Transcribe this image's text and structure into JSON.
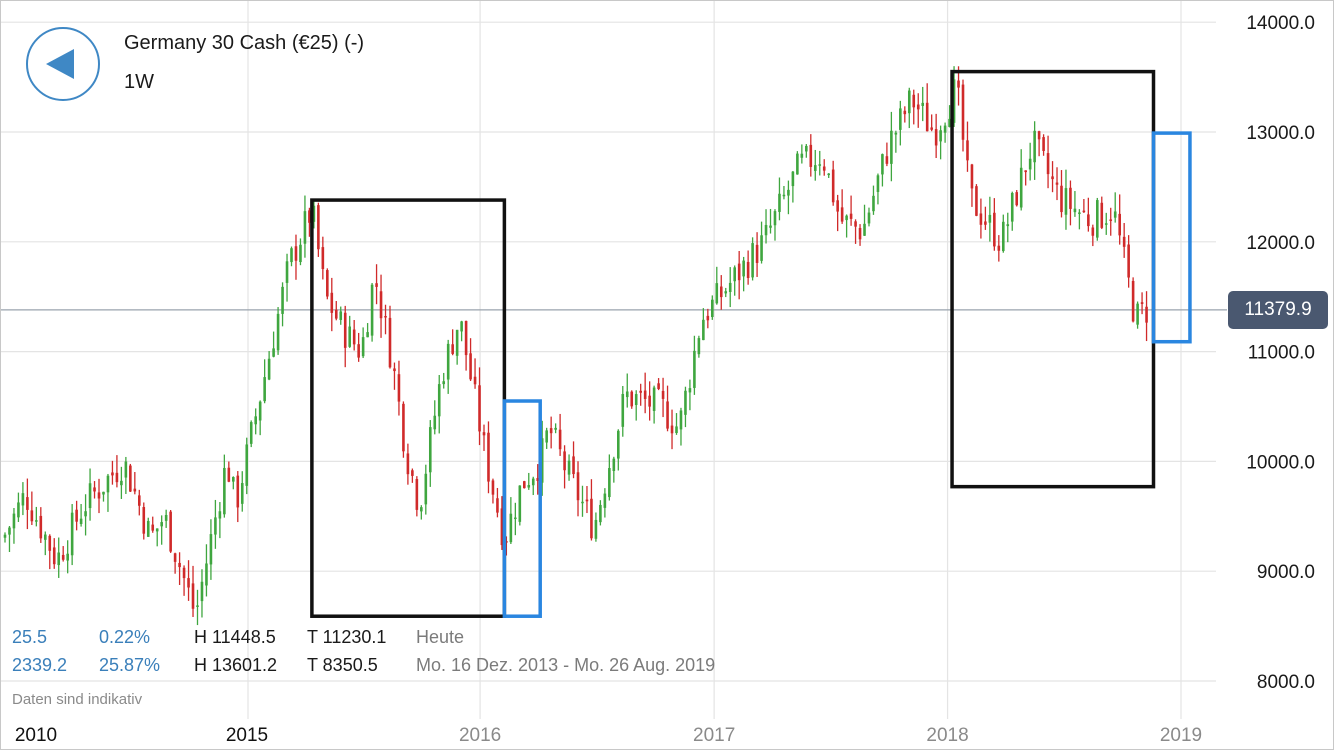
{
  "header": {
    "back_icon": "triangle-left-icon",
    "title": "Germany 30 Cash (€25) (-)",
    "interval": "1W"
  },
  "stats": {
    "row1": {
      "change": "25.5",
      "change_pct": "0.22%",
      "high": "H 11448.5",
      "low": "T 11230.1",
      "period": "Heute"
    },
    "row2": {
      "change": "2339.2",
      "change_pct": "25.87%",
      "high": "H 13601.2",
      "low": "T 8350.5",
      "period": "Mo. 16 Dez. 2013 - Mo. 26 Aug. 2019"
    }
  },
  "footer_note": "Daten sind indikativ",
  "current_price_label": "11379.9",
  "colors": {
    "up": "#3fa63f",
    "down": "#d02a2a",
    "grid": "#e4e4e4",
    "accent": "#3f88c5",
    "box_black": "#111111",
    "box_blue": "#2a86e0",
    "price_tag": "#4a5870"
  },
  "chart_data": {
    "type": "candlestick",
    "interval": "1W",
    "current_price": 11379.9,
    "y_axis": {
      "ticks": [
        14000,
        13000,
        12000,
        11000,
        10000,
        9000,
        8000
      ],
      "tick_labels": [
        "14000.0",
        "13000.0",
        "12000.0",
        "11000.0",
        "10000.0",
        "9000.0",
        "8000.0"
      ],
      "ylim": [
        7850,
        14200
      ],
      "side": "right"
    },
    "x_axis": {
      "tick_labels": [
        "2010",
        "2015",
        "2016",
        "2017",
        "2018",
        "2019"
      ],
      "tick_dates": [
        "2010-01-01",
        "2015-01-01",
        "2016-01-01",
        "2017-01-01",
        "2018-01-01",
        "2019-01-01"
      ],
      "range_start": "2013-12-16",
      "range_end": "2019-01-15"
    },
    "grid": true,
    "price_path": [
      [
        "2013-12-16",
        9300
      ],
      [
        "2014-01-20",
        9700
      ],
      [
        "2014-03-10",
        9100
      ],
      [
        "2014-04-21",
        9600
      ],
      [
        "2014-06-23",
        10000
      ],
      [
        "2014-08-04",
        9300
      ],
      [
        "2014-08-25",
        9500
      ],
      [
        "2014-10-13",
        8600
      ],
      [
        "2014-12-01",
        10000
      ],
      [
        "2014-12-15",
        9600
      ],
      [
        "2015-01-26",
        10700
      ],
      [
        "2015-03-09",
        11800
      ],
      [
        "2015-04-13",
        12300
      ],
      [
        "2015-05-04",
        11500
      ],
      [
        "2015-06-01",
        11200
      ],
      [
        "2015-06-29",
        11000
      ],
      [
        "2015-07-20",
        11700
      ],
      [
        "2015-08-17",
        10900
      ],
      [
        "2015-09-07",
        10100
      ],
      [
        "2015-09-28",
        9600
      ],
      [
        "2015-11-02",
        10800
      ],
      [
        "2015-11-30",
        11300
      ],
      [
        "2016-01-11",
        10000
      ],
      [
        "2016-02-08",
        9300
      ],
      [
        "2016-03-07",
        9800
      ],
      [
        "2016-04-04",
        10000
      ],
      [
        "2016-04-18",
        10300
      ],
      [
        "2016-05-16",
        9900
      ],
      [
        "2016-06-27",
        9400
      ],
      [
        "2016-08-15",
        10600
      ],
      [
        "2016-10-10",
        10500
      ],
      [
        "2016-11-07",
        10300
      ],
      [
        "2016-12-12",
        11300
      ],
      [
        "2017-02-06",
        11700
      ],
      [
        "2017-03-20",
        12000
      ],
      [
        "2017-05-15",
        12700
      ],
      [
        "2017-06-19",
        12800
      ],
      [
        "2017-07-17",
        12200
      ],
      [
        "2017-08-21",
        12100
      ],
      [
        "2017-10-02",
        12900
      ],
      [
        "2017-11-06",
        13300
      ],
      [
        "2017-12-11",
        13000
      ],
      [
        "2018-01-15",
        13400
      ],
      [
        "2018-02-05",
        12400
      ],
      [
        "2018-03-26",
        12000
      ],
      [
        "2018-05-14",
        12900
      ],
      [
        "2018-06-25",
        12400
      ],
      [
        "2018-08-13",
        12200
      ],
      [
        "2018-09-17",
        12300
      ],
      [
        "2018-10-22",
        11300
      ],
      [
        "2018-11-12",
        11400
      ]
    ],
    "annotations": [
      {
        "kind": "box",
        "color": "black",
        "start": "2015-04-13",
        "end": "2016-02-08",
        "top": 12380,
        "bottom": 8590
      },
      {
        "kind": "box",
        "color": "blue",
        "start": "2016-02-08",
        "end": "2016-04-04",
        "top": 10550,
        "bottom": 8590
      },
      {
        "kind": "box",
        "color": "black",
        "start": "2018-01-08",
        "end": "2018-11-19",
        "top": 13550,
        "bottom": 9770
      },
      {
        "kind": "box",
        "color": "blue",
        "start": "2018-11-19",
        "end": "2019-01-15",
        "top": 12990,
        "bottom": 11090
      }
    ]
  }
}
